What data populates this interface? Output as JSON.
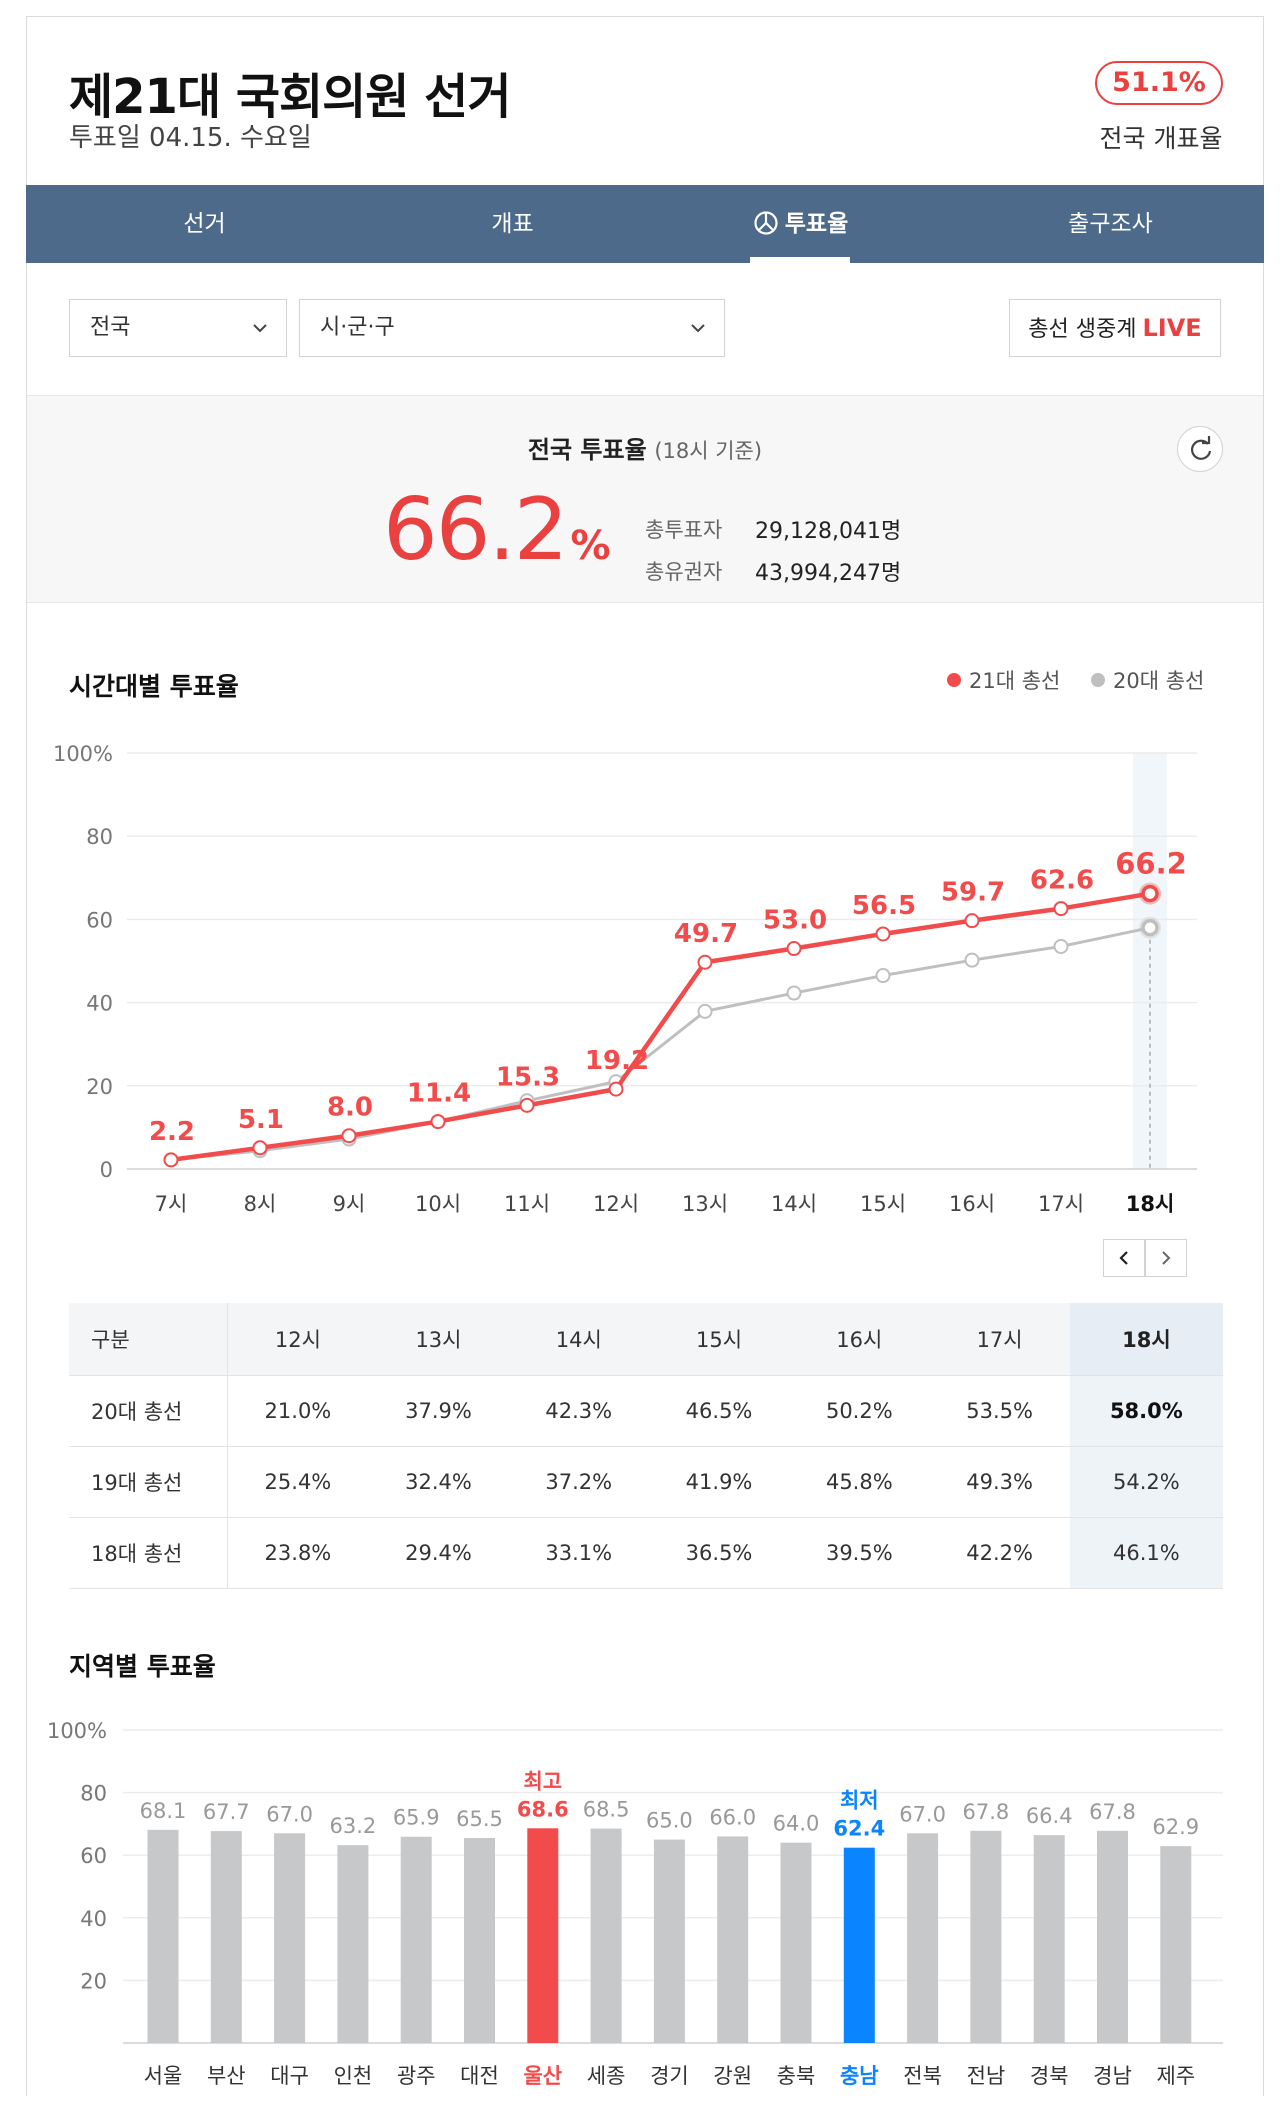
{
  "header": {
    "title": "제21대 국회의원 선거",
    "subtitle": "투표일 04.15. 수요일",
    "count_rate": "51.1%",
    "count_rate_label": "전국 개표율"
  },
  "tabs": [
    {
      "label": "선거",
      "active": false
    },
    {
      "label": "개표",
      "active": false
    },
    {
      "label": "투표율",
      "active": true,
      "icon": "pie-chart-icon"
    },
    {
      "label": "출구조사",
      "active": false
    }
  ],
  "filters": {
    "region_select": "전국",
    "district_select": "시·군·구",
    "live_button_text": "총선 생중계",
    "live_button_badge": "LIVE"
  },
  "summary": {
    "title": "전국 투표율",
    "title_note": "(18시 기준)",
    "rate_value": "66.2",
    "rate_unit": "%",
    "total_voters_label": "총투표자",
    "total_voters_value": "29,128,041명",
    "eligible_label": "총유권자",
    "eligible_value": "43,994,247명",
    "refresh_icon": "refresh-icon"
  },
  "hourly": {
    "title": "시간대별 투표율",
    "legend": [
      {
        "name": "21대 총선",
        "color": "#f24b4b"
      },
      {
        "name": "20대 총선",
        "color": "#bfbfbf"
      }
    ]
  },
  "chart_data": [
    {
      "type": "line",
      "x": [
        "7시",
        "8시",
        "9시",
        "10시",
        "11시",
        "12시",
        "13시",
        "14시",
        "15시",
        "16시",
        "17시",
        "18시"
      ],
      "series": [
        {
          "name": "21대 총선",
          "color": "#f24b4b",
          "values": [
            2.2,
            5.1,
            8.0,
            11.4,
            15.3,
            19.2,
            49.7,
            53.0,
            56.5,
            59.7,
            62.6,
            66.2
          ]
        },
        {
          "name": "20대 총선",
          "color": "#bfbfbf",
          "values": [
            2.2,
            4.4,
            7.2,
            11.4,
            16.4,
            21.0,
            37.9,
            42.3,
            46.5,
            50.2,
            53.5,
            58.0
          ]
        }
      ],
      "yticks": [
        "0",
        "20",
        "40",
        "60",
        "80",
        "100%"
      ],
      "ylim": [
        0,
        100
      ],
      "highlight_x": "18시",
      "grid": true,
      "legend": "top-right"
    },
    {
      "type": "bar",
      "categories": [
        "서울",
        "부산",
        "대구",
        "인천",
        "광주",
        "대전",
        "울산",
        "세종",
        "경기",
        "강원",
        "충북",
        "충남",
        "전북",
        "전남",
        "경북",
        "경남",
        "제주"
      ],
      "values": [
        68.1,
        67.7,
        67.0,
        63.2,
        65.9,
        65.5,
        68.6,
        68.5,
        65.0,
        66.0,
        64.0,
        62.4,
        67.0,
        67.8,
        66.4,
        67.8,
        62.9
      ],
      "yticks": [
        "20",
        "40",
        "60",
        "80",
        "100%"
      ],
      "ylim": [
        0,
        100
      ],
      "max_category": "울산",
      "min_category": "충남",
      "max_label": "최고",
      "min_label": "최저",
      "colors": {
        "default": "#c6c8ca",
        "max": "#f24b4b",
        "min": "#0a84ff"
      },
      "grid": true
    }
  ],
  "table": {
    "headers": [
      "구분",
      "12시",
      "13시",
      "14시",
      "15시",
      "16시",
      "17시",
      "18시"
    ],
    "rows": [
      [
        "20대 총선",
        "21.0%",
        "37.9%",
        "42.3%",
        "46.5%",
        "50.2%",
        "53.5%",
        "58.0%"
      ],
      [
        "19대 총선",
        "25.4%",
        "32.4%",
        "37.2%",
        "41.9%",
        "45.8%",
        "49.3%",
        "54.2%"
      ],
      [
        "18대 총선",
        "23.8%",
        "29.4%",
        "33.1%",
        "36.5%",
        "39.5%",
        "42.2%",
        "46.1%"
      ]
    ]
  },
  "regional": {
    "title": "지역별 투표율"
  }
}
